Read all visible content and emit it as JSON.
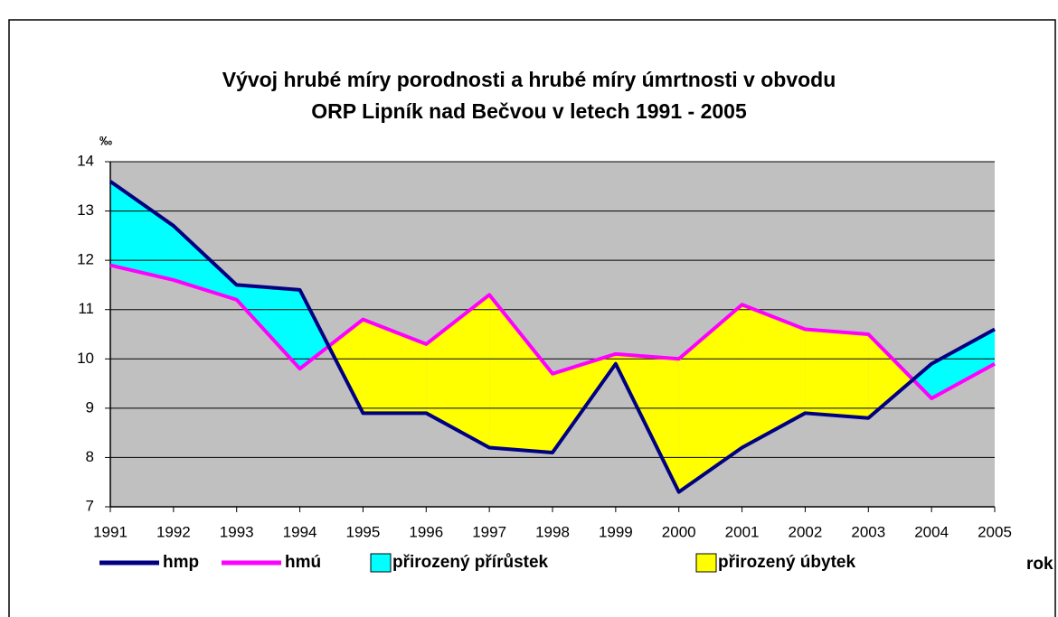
{
  "chart_data": {
    "type": "line",
    "title": [
      "Vývoj hrubé míry porodnosti a hrubé míry úmrtnosti v obvodu",
      "ORP Lipník nad Bečvou v letech 1991 - 2005"
    ],
    "y_label": "‰",
    "x_label": "rok",
    "categories": [
      "1991",
      "1992",
      "1993",
      "1994",
      "1995",
      "1996",
      "1997",
      "1998",
      "1999",
      "2000",
      "2001",
      "2002",
      "2003",
      "2004",
      "2005"
    ],
    "series": [
      {
        "name": "hmp",
        "color": "#000080",
        "values": [
          13.6,
          12.7,
          11.5,
          11.4,
          8.9,
          8.9,
          8.2,
          8.1,
          9.9,
          7.3,
          8.2,
          8.9,
          8.8,
          9.9,
          10.6
        ]
      },
      {
        "name": "hmú",
        "color": "#ff00ff",
        "values": [
          11.9,
          11.6,
          11.2,
          9.8,
          10.8,
          10.3,
          11.3,
          9.7,
          10.1,
          10.0,
          11.1,
          10.6,
          10.5,
          9.2,
          9.9
        ]
      }
    ],
    "areas": [
      {
        "name": "přirozený přírůstek",
        "color": "#00ffff"
      },
      {
        "name": "přirozený úbytek",
        "color": "#ffff00"
      }
    ],
    "ylim": [
      7,
      14
    ],
    "yticks": [
      7,
      8,
      9,
      10,
      11,
      12,
      13,
      14
    ],
    "grid": true
  }
}
